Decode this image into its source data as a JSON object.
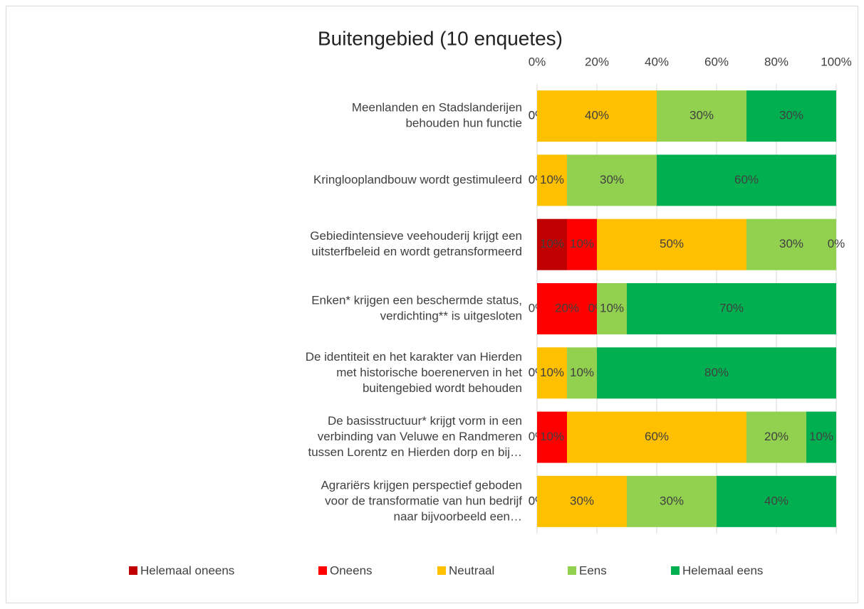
{
  "chart_data": {
    "type": "stacked_barh",
    "title": "Buitengebied (10 enquetes)",
    "categories": [
      [
        "Meenlanden en Stadslanderijen",
        "behouden hun functie"
      ],
      [
        "Kringlooplandbouw wordt gestimuleerd"
      ],
      [
        "Gebiedintensieve veehouderij krijgt een",
        "uitsterfbeleid en wordt getransformeerd"
      ],
      [
        "Enken* krijgen een beschermde status,",
        "verdichting** is uitgesloten"
      ],
      [
        "De identiteit en het karakter van Hierden",
        "met historische boerenerven in het",
        "buitengebied wordt behouden"
      ],
      [
        "De basisstructuur* krijgt vorm in een",
        "verbinding van Veluwe en Randmeren",
        "tussen Lorentz en Hierden dorp en bij…"
      ],
      [
        "Agrariërs krijgen perspectief geboden",
        "voor de transformatie van hun bedrijf",
        "naar bijvoorbeeld een…"
      ]
    ],
    "series": [
      {
        "name": "Helemaal oneens",
        "color": "#c00000",
        "values": [
          0,
          0,
          10,
          0,
          0,
          0,
          0
        ],
        "value_labels": [
          "0%",
          "0%",
          "10%",
          "0%",
          "0%",
          "0%",
          "0%"
        ]
      },
      {
        "name": "Oneens",
        "color": "#ff0000",
        "values": [
          0,
          0,
          10,
          20,
          0,
          10,
          0
        ],
        "value_labels": [
          "0%",
          "0%",
          "10%",
          "20%",
          "0%",
          "10%",
          "0%"
        ]
      },
      {
        "name": "Neutraal",
        "color": "#ffc000",
        "values": [
          40,
          10,
          50,
          0,
          10,
          60,
          30
        ],
        "value_labels": [
          "40%",
          "10%",
          "50%",
          "0%",
          "10%",
          "60%",
          "30%"
        ]
      },
      {
        "name": "Eens",
        "color": "#92d050",
        "values": [
          30,
          30,
          30,
          10,
          10,
          20,
          30
        ],
        "value_labels": [
          "30%",
          "30%",
          "30%",
          "10%",
          "10%",
          "20%",
          "30%"
        ]
      },
      {
        "name": "Helemaal eens",
        "color": "#00b050",
        "values": [
          30,
          60,
          0,
          70,
          80,
          10,
          40
        ],
        "value_labels": [
          "30%",
          "60%",
          "0%",
          "70%",
          "80%",
          "10%",
          "40%"
        ]
      }
    ],
    "xlim": [
      0,
      100
    ],
    "xticks": [
      {
        "value": 0,
        "label": "0%"
      },
      {
        "value": 20,
        "label": "20%"
      },
      {
        "value": 40,
        "label": "40%"
      },
      {
        "value": 60,
        "label": "60%"
      },
      {
        "value": 80,
        "label": "80%"
      },
      {
        "value": 100,
        "label": "100%"
      }
    ],
    "grid": true,
    "legend": "bottom"
  }
}
